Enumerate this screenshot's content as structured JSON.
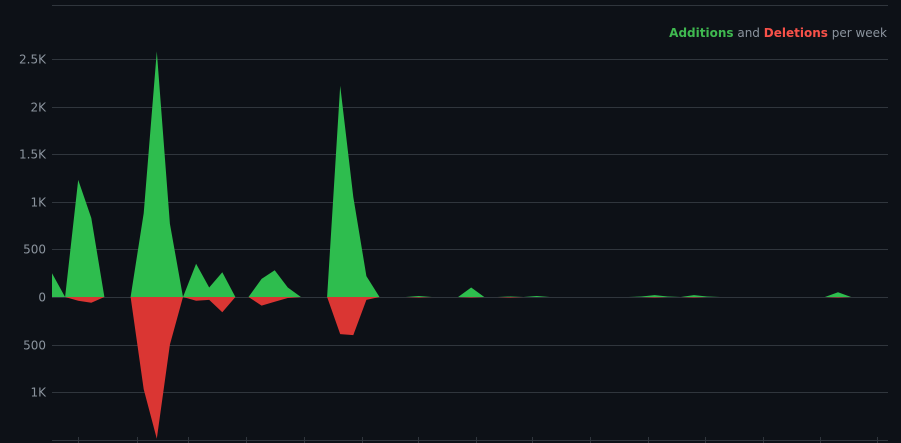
{
  "chart_data": {
    "type": "area",
    "legend": {
      "additions_label": "Additions",
      "joiner": "and",
      "deletions_label": "Deletions",
      "suffix": "per week",
      "placement": "top-right"
    },
    "colors": {
      "additions": "#2ebd4e",
      "deletions": "#da3633",
      "grid": "#30363d",
      "text": "#8b949e",
      "background": "#0d1117"
    },
    "y_ticks": [
      {
        "value": 2500,
        "label": "2.5K"
      },
      {
        "value": 2000,
        "label": "2K"
      },
      {
        "value": 1500,
        "label": "1.5K"
      },
      {
        "value": 1000,
        "label": "1K"
      },
      {
        "value": 500,
        "label": "500"
      },
      {
        "value": 0,
        "label": "0"
      },
      {
        "value": -500,
        "label": "500"
      },
      {
        "value": -1000,
        "label": "1K"
      }
    ],
    "ylim": [
      -1500,
      2500
    ],
    "grid": true,
    "weeks": 64,
    "series": [
      {
        "name": "Additions",
        "values": [
          250,
          0,
          1230,
          830,
          0,
          0,
          0,
          880,
          2580,
          770,
          0,
          350,
          100,
          260,
          0,
          0,
          190,
          280,
          100,
          0,
          0,
          0,
          2220,
          1050,
          220,
          0,
          0,
          0,
          10,
          0,
          0,
          0,
          100,
          0,
          0,
          5,
          0,
          10,
          0,
          0,
          0,
          0,
          0,
          0,
          0,
          5,
          20,
          5,
          0,
          20,
          5,
          0,
          0,
          0,
          0,
          0,
          0,
          0,
          0,
          0,
          50,
          0,
          0,
          0
        ]
      },
      {
        "name": "Deletions",
        "values": [
          0,
          0,
          -40,
          -60,
          0,
          0,
          0,
          -970,
          -1490,
          -500,
          0,
          -40,
          -30,
          -160,
          0,
          0,
          -90,
          -50,
          -10,
          0,
          0,
          0,
          -390,
          -400,
          -30,
          0,
          0,
          0,
          -5,
          0,
          0,
          0,
          -5,
          0,
          0,
          -5,
          0,
          0,
          0,
          0,
          0,
          0,
          0,
          0,
          0,
          0,
          -5,
          0,
          0,
          -5,
          0,
          0,
          0,
          0,
          0,
          0,
          0,
          0,
          0,
          0,
          -5,
          0,
          0,
          0
        ]
      }
    ]
  }
}
